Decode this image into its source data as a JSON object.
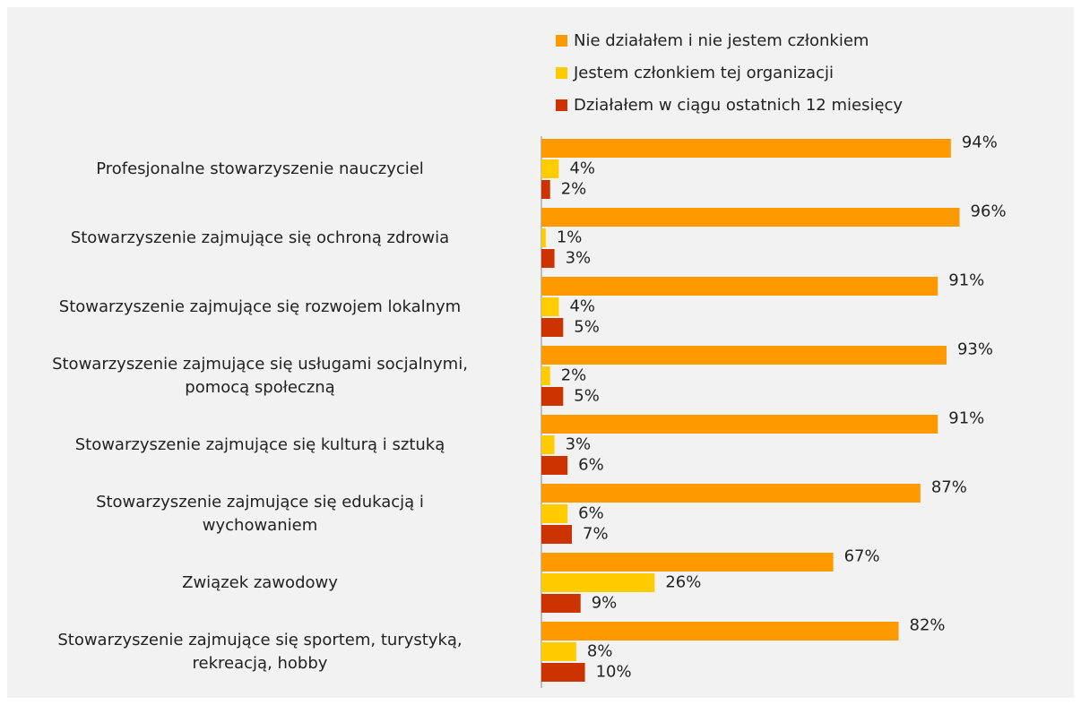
{
  "chart_data": {
    "type": "bar",
    "orientation": "horizontal",
    "categories": [
      "Profesjonalne stowarzyszenie nauczyciel",
      "Stowarzyszenie zajmujące się ochroną zdrowia",
      "Stowarzyszenie zajmujące się  rozwojem lokalnym ",
      "Stowarzyszenie zajmujące się  usługami socjalnymi,\npomocą społeczną",
      "Stowarzyszenie zajmujące się kulturą i sztuką",
      "Stowarzyszenie zajmujące się  edukacją i\nwychowaniem",
      "Związek zawodowy",
      "Stowarzyszenie zajmujące się  sportem, turystyką,\nrekreacją, hobby"
    ],
    "series": [
      {
        "name": "Nie działałem i nie jestem członkiem",
        "color": "#ff9900",
        "values": [
          94,
          96,
          91,
          93,
          91,
          87,
          67,
          82
        ],
        "value_labels": [
          "94%",
          "96%",
          "91%",
          "93%",
          "91%",
          "87%",
          "67%",
          "82%"
        ]
      },
      {
        "name": "Jestem członkiem tej organizacji",
        "color": "#ffcc00",
        "values": [
          4,
          1,
          4,
          2,
          3,
          6,
          26,
          8
        ],
        "value_labels": [
          "4%",
          "1%",
          "4%",
          "2%",
          "3%",
          "6%",
          "26%",
          "8%"
        ]
      },
      {
        "name": "Działałem w ciągu ostatnich 12 miesięcy",
        "color": "#cc3300",
        "values": [
          2,
          3,
          5,
          5,
          6,
          7,
          9,
          10
        ],
        "value_labels": [
          "2%",
          "3%",
          "5%",
          "5%",
          "6%",
          "7%",
          "9%",
          "10%"
        ]
      }
    ],
    "xlim": [
      0,
      100
    ],
    "legend": "top-right"
  }
}
